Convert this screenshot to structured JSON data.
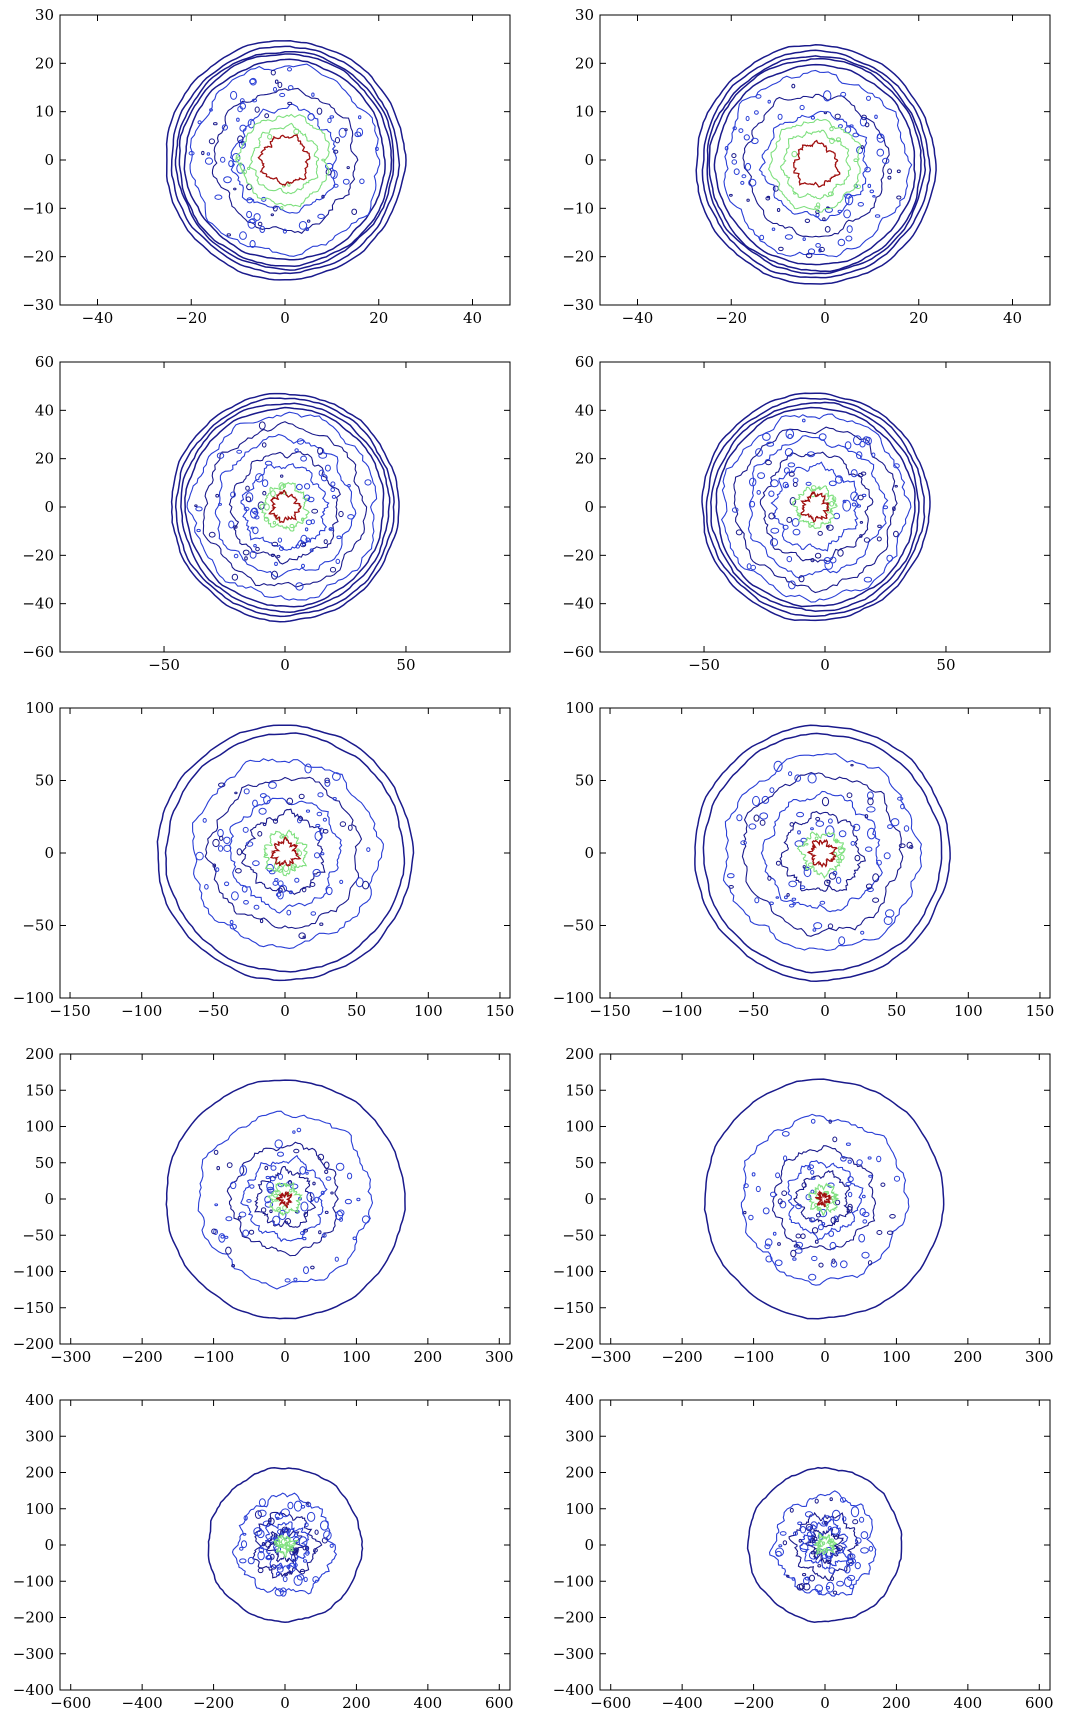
{
  "colors": {
    "outer": "#1a1a8c",
    "mid": "#2a3fd6",
    "green": "#7fe07f",
    "red": "#a01010"
  },
  "chart_data": [
    {
      "type": "contour",
      "xlim": [
        -48,
        48
      ],
      "ylim": [
        -30,
        30
      ],
      "xticks": [
        -40,
        -20,
        0,
        20,
        40
      ],
      "yticks": [
        -30,
        -20,
        -10,
        0,
        10,
        20,
        30
      ],
      "outer_radii": [
        25.5,
        24.2,
        23.2,
        22.6,
        21.3
      ],
      "mid_radii": [
        20,
        15,
        11
      ],
      "green_radii": [
        9.5,
        7
      ],
      "red_radii": [
        5
      ],
      "center": [
        0,
        0
      ],
      "noise": 0.7,
      "seed": 11
    },
    {
      "type": "contour",
      "xlim": [
        -48,
        48
      ],
      "ylim": [
        -30,
        30
      ],
      "xticks": [
        -40,
        -20,
        0,
        20,
        40
      ],
      "yticks": [
        -30,
        -20,
        -10,
        0,
        10,
        20,
        30
      ],
      "outer_radii": [
        25.5,
        24.2,
        23.2,
        22.6,
        21.3
      ],
      "mid_radii": [
        19.5,
        15,
        11
      ],
      "green_radii": [
        9.5,
        7
      ],
      "red_radii": [
        4.5
      ],
      "center": [
        -2,
        -1
      ],
      "noise": 0.7,
      "seed": 23
    },
    {
      "type": "contour",
      "xlim": [
        -93,
        93
      ],
      "ylim": [
        -60,
        60
      ],
      "xticks": [
        -50,
        0,
        50
      ],
      "yticks": [
        -60,
        -40,
        -20,
        0,
        20,
        40,
        60
      ],
      "outer_radii": [
        47,
        45,
        43,
        41
      ],
      "mid_radii": [
        38,
        33,
        28,
        22,
        17
      ],
      "green_radii": [
        9
      ],
      "red_radii": [
        5.5
      ],
      "center": [
        0,
        0
      ],
      "noise": 1.4,
      "seed": 37
    },
    {
      "type": "contour",
      "xlim": [
        -93,
        93
      ],
      "ylim": [
        -60,
        60
      ],
      "xticks": [
        -50,
        0,
        50
      ],
      "yticks": [
        -60,
        -40,
        -20,
        0,
        20,
        40,
        60
      ],
      "outer_radii": [
        47,
        45,
        43,
        41
      ],
      "mid_radii": [
        38,
        33,
        28,
        22,
        17
      ],
      "green_radii": [
        8
      ],
      "red_radii": [
        5
      ],
      "center": [
        -4,
        0
      ],
      "noise": 1.4,
      "seed": 41
    },
    {
      "type": "contour",
      "xlim": [
        -157,
        157
      ],
      "ylim": [
        -100,
        100
      ],
      "xticks": [
        -150,
        -100,
        -50,
        0,
        50,
        100,
        150
      ],
      "yticks": [
        -100,
        -50,
        0,
        50,
        100
      ],
      "outer_radii": [
        89,
        83
      ],
      "mid_radii": [
        65,
        52,
        38,
        27
      ],
      "green_radii": [
        14
      ],
      "red_radii": [
        8
      ],
      "center": [
        0,
        0
      ],
      "noise": 2.5,
      "seed": 53
    },
    {
      "type": "contour",
      "xlim": [
        -157,
        157
      ],
      "ylim": [
        -100,
        100
      ],
      "xticks": [
        -150,
        -100,
        -50,
        0,
        50,
        100,
        150
      ],
      "yticks": [
        -100,
        -50,
        0,
        50,
        100
      ],
      "outer_radii": [
        89,
        83
      ],
      "mid_radii": [
        68,
        55,
        40,
        27
      ],
      "green_radii": [
        14
      ],
      "red_radii": [
        8
      ],
      "center": [
        -2,
        0
      ],
      "noise": 2.5,
      "seed": 59
    },
    {
      "type": "contour",
      "xlim": [
        -315,
        315
      ],
      "ylim": [
        -200,
        200
      ],
      "xticks": [
        -300,
        -200,
        -100,
        0,
        100,
        200,
        300
      ],
      "yticks": [
        -200,
        -150,
        -100,
        -50,
        0,
        50,
        100,
        150,
        200
      ],
      "outer_radii": [
        167
      ],
      "mid_radii": [
        120,
        75,
        55,
        38
      ],
      "green_radii": [
        20
      ],
      "red_radii": [
        7
      ],
      "center": [
        0,
        0
      ],
      "noise": 4.5,
      "seed": 67
    },
    {
      "type": "contour",
      "xlim": [
        -315,
        315
      ],
      "ylim": [
        -200,
        200
      ],
      "xticks": [
        -300,
        -200,
        -100,
        0,
        100,
        200,
        300
      ],
      "yticks": [
        -200,
        -150,
        -100,
        -50,
        0,
        50,
        100,
        150,
        200
      ],
      "outer_radii": [
        167
      ],
      "mid_radii": [
        115,
        70,
        50,
        35
      ],
      "green_radii": [
        18
      ],
      "red_radii": [
        7
      ],
      "center": [
        -2,
        0
      ],
      "noise": 4.5,
      "seed": 71
    },
    {
      "type": "contour",
      "xlim": [
        -630,
        630
      ],
      "ylim": [
        -400,
        400
      ],
      "xticks": [
        -600,
        -400,
        -200,
        0,
        200,
        400,
        600
      ],
      "yticks": [
        -400,
        -300,
        -200,
        -100,
        0,
        100,
        200,
        300,
        400
      ],
      "outer_radii": [
        215
      ],
      "mid_radii": [
        135,
        85,
        60,
        40
      ],
      "green_radii": [
        22
      ],
      "red_radii": [],
      "center": [
        0,
        0
      ],
      "noise": 10,
      "seed": 79
    },
    {
      "type": "contour",
      "xlim": [
        -630,
        630
      ],
      "ylim": [
        -400,
        400
      ],
      "xticks": [
        -600,
        -400,
        -200,
        0,
        200,
        400,
        600
      ],
      "yticks": [
        -400,
        -300,
        -200,
        -100,
        0,
        100,
        200,
        300,
        400
      ],
      "outer_radii": [
        215
      ],
      "mid_radii": [
        140,
        85,
        60,
        40
      ],
      "green_radii": [
        22
      ],
      "red_radii": [],
      "center": [
        0,
        0
      ],
      "noise": 10,
      "seed": 83
    }
  ]
}
